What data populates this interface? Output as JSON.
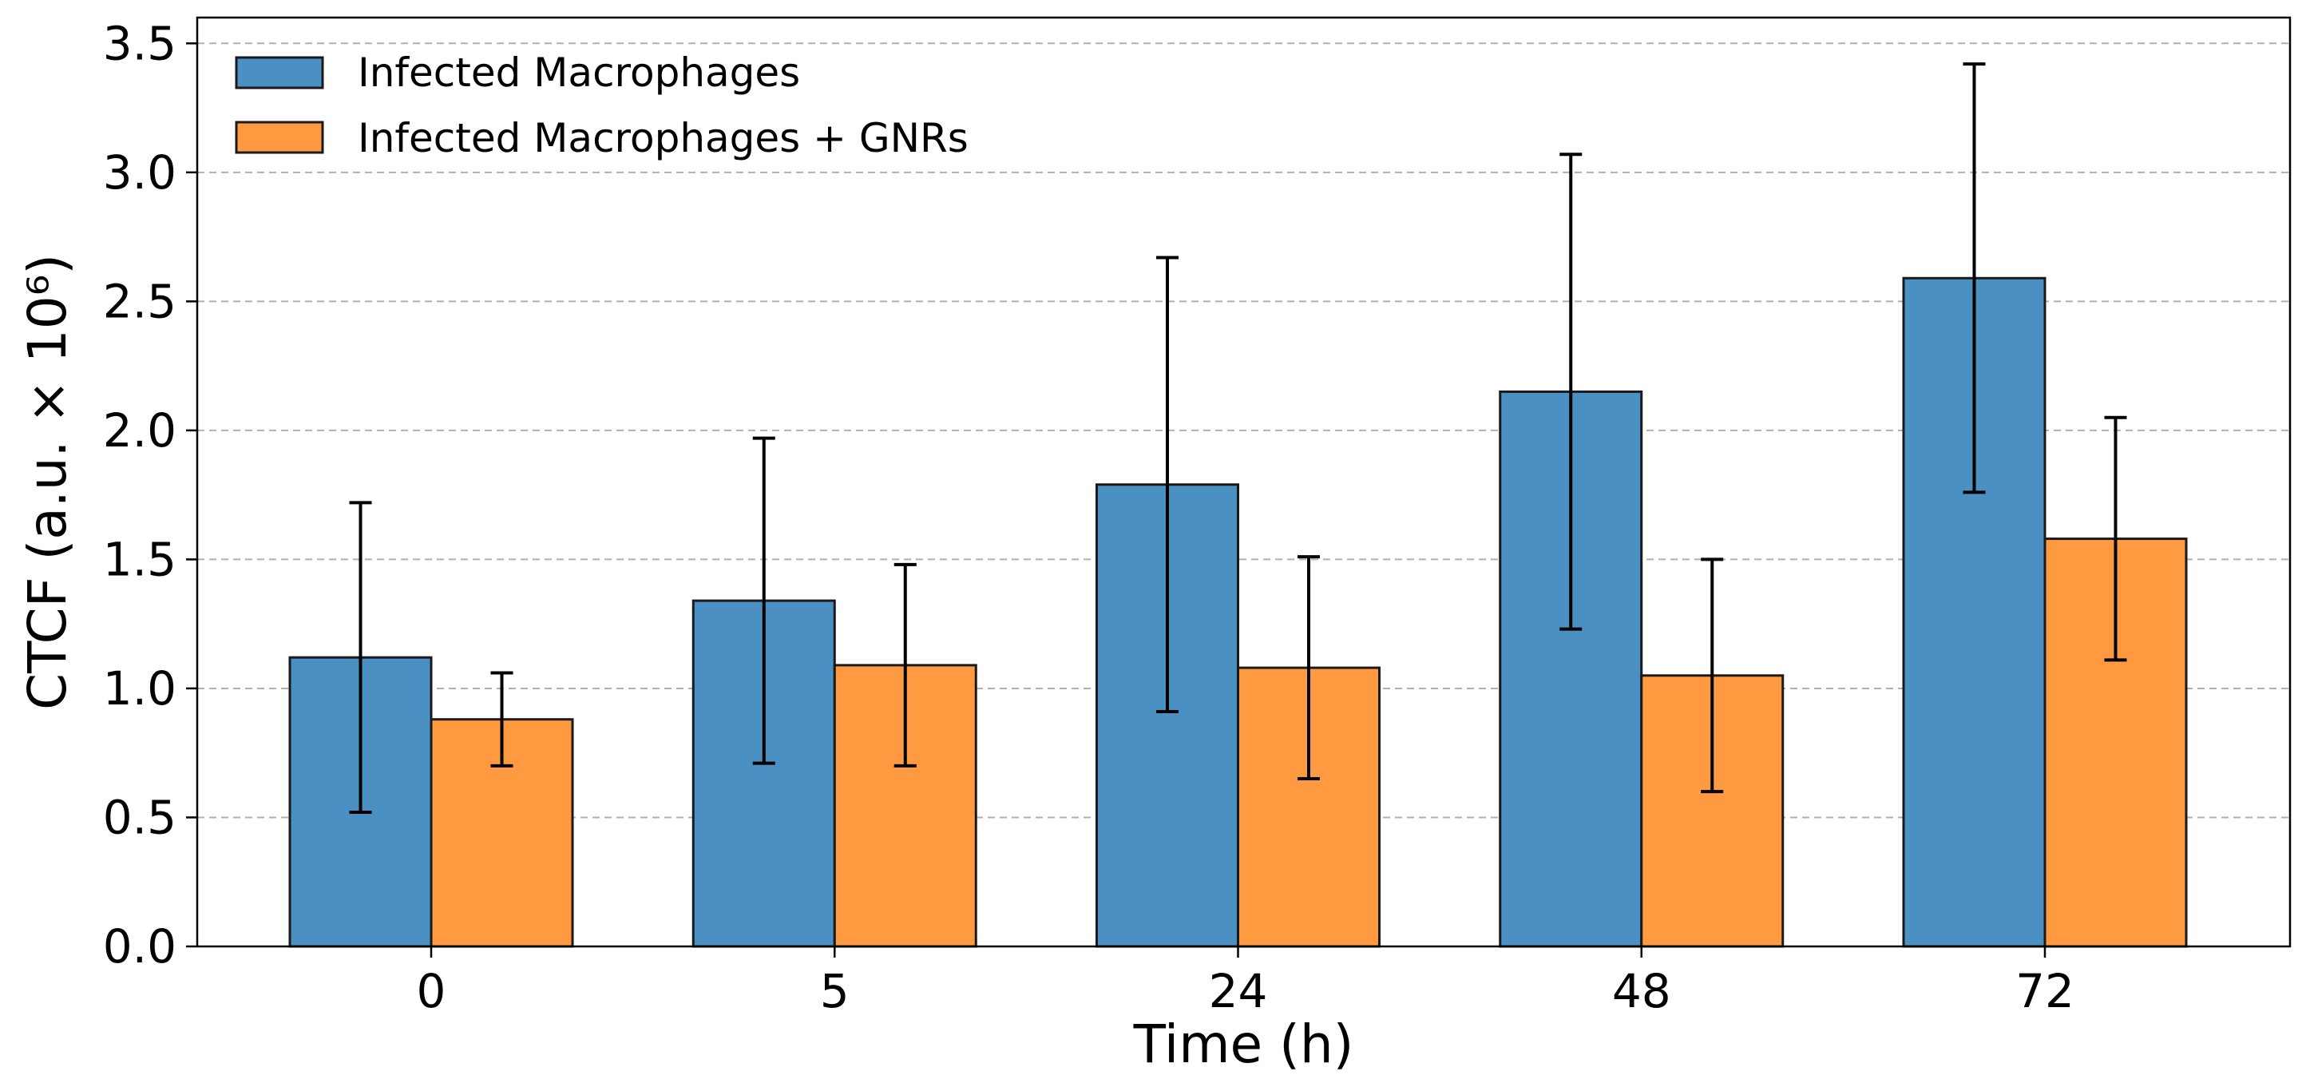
{
  "chart_data": {
    "type": "bar",
    "title": "",
    "xlabel": "Time (h)",
    "ylabel": "CTCF (a.u. × 10⁶)",
    "categories": [
      "0",
      "5",
      "24",
      "48",
      "72"
    ],
    "ylim": [
      0,
      3.6
    ],
    "yticks": [
      0.0,
      0.5,
      1.0,
      1.5,
      2.0,
      2.5,
      3.0,
      3.5
    ],
    "ytick_labels": [
      "0.0",
      "0.5",
      "1.0",
      "1.5",
      "2.0",
      "2.5",
      "3.0",
      "3.5"
    ],
    "grid": "y-dashed",
    "legend_position": "top-left",
    "series": [
      {
        "name": "Infected Macrophages",
        "color": "#4a90c2",
        "values": [
          1.12,
          1.34,
          1.79,
          2.15,
          2.59
        ],
        "errors": [
          0.6,
          0.63,
          0.88,
          0.92,
          0.83
        ]
      },
      {
        "name": "Infected Macrophages + GNRs",
        "color": "#ff9a40",
        "values": [
          0.88,
          1.09,
          1.08,
          1.05,
          1.58
        ],
        "errors": [
          0.18,
          0.39,
          0.43,
          0.45,
          0.47
        ]
      }
    ]
  }
}
